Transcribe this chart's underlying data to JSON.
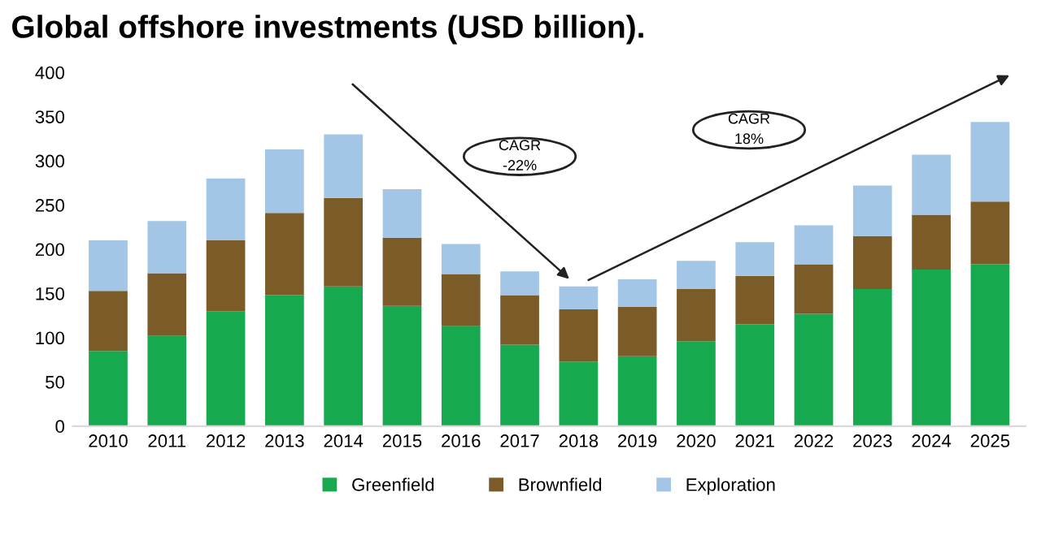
{
  "chart_data": {
    "type": "bar",
    "title": "Global offshore investments (USD billion).",
    "categories": [
      "2010",
      "2011",
      "2012",
      "2013",
      "2014",
      "2015",
      "2016",
      "2017",
      "2018",
      "2019",
      "2020",
      "2021",
      "2022",
      "2023",
      "2024",
      "2025"
    ],
    "stacked": true,
    "series": [
      {
        "name": "Greenfield",
        "color": "#17a94f",
        "values": [
          85,
          102,
          130,
          148,
          158,
          136,
          113,
          92,
          73,
          79,
          96,
          115,
          127,
          155,
          177,
          183
        ]
      },
      {
        "name": "Brownfield",
        "color": "#7b5b27",
        "values": [
          68,
          71,
          80,
          93,
          100,
          77,
          59,
          56,
          59,
          56,
          59,
          55,
          56,
          60,
          62,
          71
        ]
      },
      {
        "name": "Exploration",
        "color": "#a3c6e6",
        "values": [
          57,
          59,
          70,
          72,
          72,
          55,
          34,
          27,
          26,
          31,
          32,
          38,
          44,
          57,
          68,
          90
        ]
      }
    ],
    "ylim": [
      0,
      400
    ],
    "yticks": [
      0,
      50,
      100,
      150,
      200,
      250,
      300,
      350,
      400
    ],
    "grid": false,
    "legend": "bottom",
    "annotations": [
      "CAGR\n-22%",
      "CAGR\n18%"
    ]
  }
}
